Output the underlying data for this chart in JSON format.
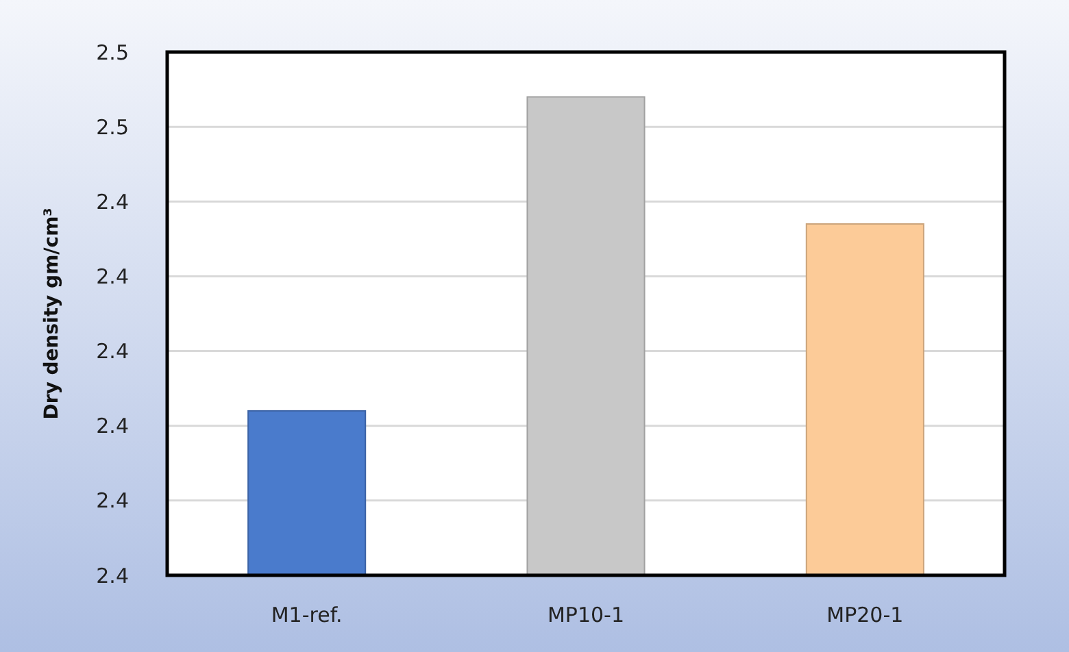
{
  "chart_data": {
    "type": "bar",
    "ylabel": "Dry density gm/cm³",
    "categories": [
      "M1-ref.",
      "MP10-1",
      "MP20-1"
    ],
    "values": [
      2.422,
      2.464,
      2.447
    ],
    "colors": [
      "#4a7bcc",
      "#c8c8c8",
      "#fccb98"
    ],
    "ylim": [
      2.4,
      2.47
    ],
    "yticks": [
      {
        "value": 2.4,
        "label": "2.4"
      },
      {
        "value": 2.41,
        "label": "2.4"
      },
      {
        "value": 2.42,
        "label": "2.4"
      },
      {
        "value": 2.43,
        "label": "2.4"
      },
      {
        "value": 2.44,
        "label": "2.4"
      },
      {
        "value": 2.45,
        "label": "2.4"
      },
      {
        "value": 2.46,
        "label": "2.5"
      },
      {
        "value": 2.47,
        "label": "2.5"
      }
    ],
    "grid": "y"
  }
}
